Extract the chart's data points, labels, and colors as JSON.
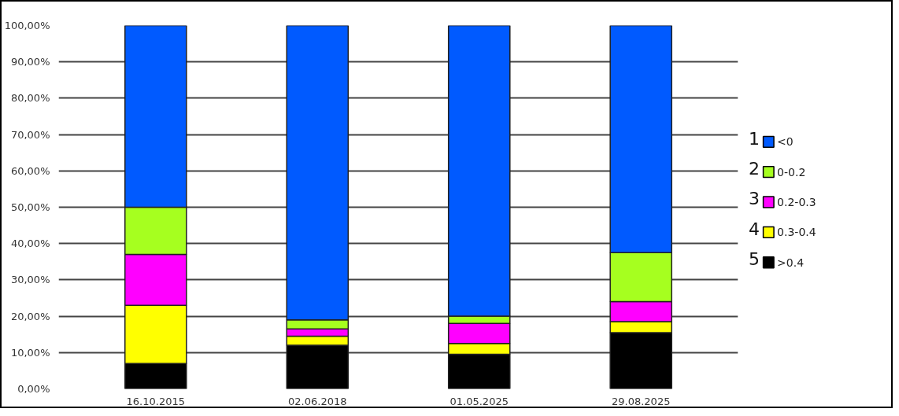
{
  "chart_data": {
    "type": "bar",
    "stacked": true,
    "categories": [
      "16.10.2015",
      "02.06.2018",
      "01.05.2025",
      "29.08.2025"
    ],
    "series": [
      {
        "name": ">0.4",
        "color": "#000000",
        "values": [
          7,
          12,
          9.5,
          15.5
        ]
      },
      {
        "name": "0.3-0.4",
        "color": "#ffff00",
        "values": [
          16,
          2.5,
          3,
          3
        ]
      },
      {
        "name": "0.2-0.3",
        "color": "#ff00ff",
        "values": [
          14,
          2,
          5.5,
          5.5
        ]
      },
      {
        "name": "0-0.2",
        "color": "#a6ff1f",
        "values": [
          13,
          2.5,
          2,
          13.5
        ]
      },
      {
        "name": "<0",
        "color": "#005aff",
        "values": [
          50,
          81,
          80,
          62.5
        ]
      }
    ],
    "ylim": [
      0,
      100
    ],
    "yticks": [
      {
        "value": 0,
        "label": "0,00%"
      },
      {
        "value": 10,
        "label": "10,00%"
      },
      {
        "value": 20,
        "label": "20,00%"
      },
      {
        "value": 30,
        "label": "30,00%"
      },
      {
        "value": 40,
        "label": "40,00%"
      },
      {
        "value": 50,
        "label": "50,00%"
      },
      {
        "value": 60,
        "label": "60,00%"
      },
      {
        "value": 70,
        "label": "70,00%"
      },
      {
        "value": 80,
        "label": "80,00%"
      },
      {
        "value": 90,
        "label": "90,00%"
      },
      {
        "value": 100,
        "label": "100,00%"
      }
    ],
    "grid": "y",
    "legend": "right",
    "annotations": [
      "1",
      "2",
      "3",
      "4",
      "5"
    ]
  }
}
